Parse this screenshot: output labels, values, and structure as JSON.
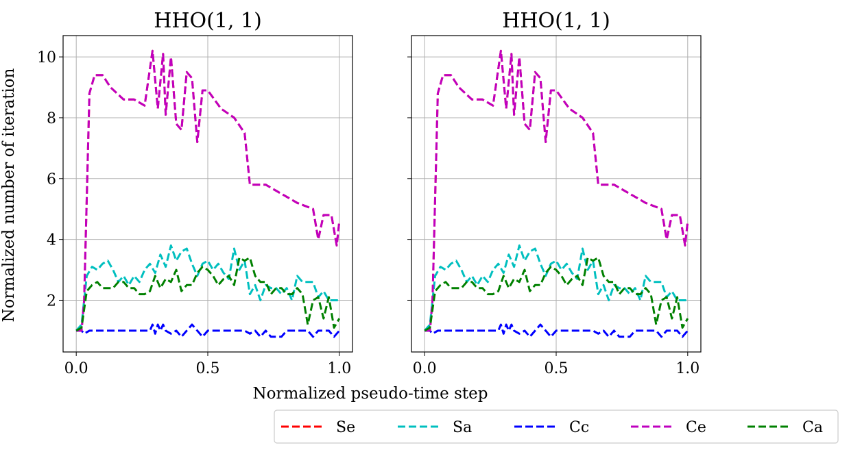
{
  "chart_data": [
    {
      "type": "line",
      "title": "HHO(1, 1)",
      "xlabel": "",
      "ylabel": "Normalized number of iteration",
      "xlim": [
        -0.05,
        1.05
      ],
      "ylim": [
        0.3,
        10.7
      ],
      "xticks": [
        "0.0",
        "0.5",
        "1.0"
      ],
      "yticks": [
        "2",
        "4",
        "6",
        "8",
        "10"
      ],
      "grid": true,
      "line_style": "dashed",
      "series": [
        {
          "name": "Se",
          "color": "#ff0000",
          "x": [
            0.0,
            0.02,
            0.03,
            0.05,
            0.07,
            0.1,
            0.13,
            0.18,
            0.22,
            0.26,
            0.29,
            0.31,
            0.33,
            0.34,
            0.36,
            0.38,
            0.4,
            0.42,
            0.44,
            0.46,
            0.48,
            0.5,
            0.55,
            0.6,
            0.64,
            0.66,
            0.68,
            0.72,
            0.76,
            0.8,
            0.84,
            0.9,
            0.92,
            0.94,
            0.97,
            0.99,
            1.0
          ],
          "y": [
            1.0,
            1.0,
            2.0,
            8.8,
            9.4,
            9.4,
            9.0,
            8.6,
            8.6,
            8.4,
            10.2,
            8.3,
            10.1,
            8.1,
            10.0,
            7.8,
            7.6,
            9.5,
            9.3,
            7.2,
            8.9,
            8.9,
            8.3,
            8.0,
            7.5,
            5.8,
            5.8,
            5.8,
            5.6,
            5.4,
            5.2,
            5.0,
            4.0,
            4.8,
            4.8,
            3.8,
            4.6
          ]
        },
        {
          "name": "Sa",
          "color": "#00bfbf",
          "x": [
            0.0,
            0.02,
            0.04,
            0.06,
            0.08,
            0.1,
            0.12,
            0.14,
            0.16,
            0.18,
            0.2,
            0.22,
            0.24,
            0.26,
            0.28,
            0.3,
            0.32,
            0.34,
            0.36,
            0.38,
            0.4,
            0.42,
            0.44,
            0.46,
            0.48,
            0.5,
            0.52,
            0.54,
            0.56,
            0.58,
            0.6,
            0.62,
            0.64,
            0.66,
            0.68,
            0.7,
            0.72,
            0.74,
            0.76,
            0.78,
            0.8,
            0.82,
            0.84,
            0.86,
            0.88,
            0.9,
            0.92,
            0.94,
            0.96,
            0.98,
            1.0
          ],
          "y": [
            1.0,
            1.2,
            2.8,
            3.1,
            3.0,
            3.2,
            3.3,
            3.0,
            2.6,
            2.8,
            2.5,
            2.8,
            2.6,
            3.0,
            3.2,
            2.9,
            3.5,
            3.1,
            3.8,
            3.3,
            3.6,
            3.7,
            3.2,
            2.8,
            3.2,
            3.3,
            3.0,
            3.2,
            2.9,
            2.7,
            3.7,
            3.0,
            3.3,
            2.2,
            2.5,
            2.0,
            2.5,
            2.4,
            2.4,
            2.2,
            2.4,
            2.0,
            2.8,
            2.6,
            2.6,
            2.6,
            2.1,
            2.3,
            2.0,
            2.0,
            2.0
          ]
        },
        {
          "name": "Cc",
          "color": "#0000ff",
          "x": [
            0.0,
            0.02,
            0.03,
            0.05,
            0.08,
            0.1,
            0.15,
            0.2,
            0.25,
            0.28,
            0.29,
            0.3,
            0.31,
            0.32,
            0.33,
            0.34,
            0.36,
            0.38,
            0.4,
            0.42,
            0.44,
            0.46,
            0.48,
            0.5,
            0.55,
            0.6,
            0.64,
            0.66,
            0.68,
            0.7,
            0.72,
            0.74,
            0.76,
            0.78,
            0.8,
            0.84,
            0.88,
            0.9,
            0.92,
            0.94,
            0.96,
            0.98,
            1.0
          ],
          "y": [
            1.0,
            1.0,
            0.9,
            1.0,
            1.0,
            1.0,
            1.0,
            1.0,
            1.0,
            1.0,
            1.2,
            0.9,
            1.2,
            1.0,
            1.2,
            1.0,
            0.9,
            1.0,
            0.8,
            1.0,
            1.2,
            1.0,
            0.8,
            1.0,
            1.0,
            1.0,
            1.0,
            0.9,
            1.0,
            0.8,
            1.0,
            0.8,
            0.8,
            0.8,
            1.0,
            1.0,
            1.0,
            0.8,
            1.0,
            1.0,
            1.0,
            0.8,
            1.0
          ]
        },
        {
          "name": "Ce",
          "color": "#bf00bf",
          "x": [
            0.0,
            0.02,
            0.03,
            0.05,
            0.07,
            0.1,
            0.13,
            0.18,
            0.22,
            0.26,
            0.29,
            0.31,
            0.33,
            0.34,
            0.36,
            0.38,
            0.4,
            0.42,
            0.44,
            0.46,
            0.48,
            0.5,
            0.55,
            0.6,
            0.64,
            0.66,
            0.68,
            0.72,
            0.76,
            0.8,
            0.84,
            0.9,
            0.92,
            0.94,
            0.97,
            0.99,
            1.0
          ],
          "y": [
            1.0,
            1.0,
            2.0,
            8.8,
            9.4,
            9.4,
            9.0,
            8.6,
            8.6,
            8.4,
            10.2,
            8.3,
            10.1,
            8.1,
            10.0,
            7.8,
            7.6,
            9.5,
            9.3,
            7.2,
            8.9,
            8.9,
            8.3,
            8.0,
            7.5,
            5.8,
            5.8,
            5.8,
            5.6,
            5.4,
            5.2,
            5.0,
            4.0,
            4.8,
            4.8,
            3.8,
            4.6
          ]
        },
        {
          "name": "Ca",
          "color": "#008000",
          "x": [
            0.0,
            0.02,
            0.04,
            0.06,
            0.08,
            0.1,
            0.12,
            0.14,
            0.16,
            0.18,
            0.2,
            0.22,
            0.24,
            0.26,
            0.28,
            0.3,
            0.32,
            0.34,
            0.36,
            0.38,
            0.4,
            0.42,
            0.44,
            0.46,
            0.48,
            0.5,
            0.52,
            0.54,
            0.56,
            0.58,
            0.6,
            0.62,
            0.64,
            0.66,
            0.68,
            0.7,
            0.72,
            0.74,
            0.76,
            0.78,
            0.8,
            0.82,
            0.84,
            0.86,
            0.88,
            0.9,
            0.92,
            0.94,
            0.96,
            0.98,
            1.0
          ],
          "y": [
            1.0,
            1.1,
            2.3,
            2.5,
            2.6,
            2.4,
            2.4,
            2.4,
            2.6,
            2.6,
            2.4,
            2.4,
            2.2,
            2.2,
            2.3,
            2.8,
            2.4,
            2.7,
            2.6,
            3.0,
            2.3,
            2.5,
            2.5,
            2.9,
            3.1,
            3.0,
            2.8,
            2.5,
            2.7,
            2.8,
            2.5,
            3.4,
            3.3,
            3.4,
            2.8,
            2.6,
            2.6,
            2.2,
            2.4,
            2.4,
            2.2,
            2.2,
            2.4,
            2.2,
            1.2,
            2.0,
            2.1,
            1.4,
            2.1,
            1.1,
            1.4
          ]
        }
      ]
    },
    {
      "type": "line",
      "title": "HHO(1, 1)",
      "xlabel": "",
      "ylabel": "",
      "xlim": [
        -0.05,
        1.05
      ],
      "ylim": [
        0.3,
        10.7
      ],
      "xticks": [
        "0.0",
        "0.5",
        "1.0"
      ],
      "yticks": [
        "2",
        "4",
        "6",
        "8",
        "10"
      ],
      "grid": true,
      "line_style": "dashed",
      "series": "same as first chart"
    }
  ],
  "shared_xlabel": "Normalized pseudo-time step",
  "legend": {
    "placement": "bottom-right",
    "entries": [
      {
        "name": "Se",
        "color": "#ff0000"
      },
      {
        "name": "Sa",
        "color": "#00bfbf"
      },
      {
        "name": "Cc",
        "color": "#0000ff"
      },
      {
        "name": "Ce",
        "color": "#bf00bf"
      },
      {
        "name": "Ca",
        "color": "#008000"
      }
    ]
  }
}
